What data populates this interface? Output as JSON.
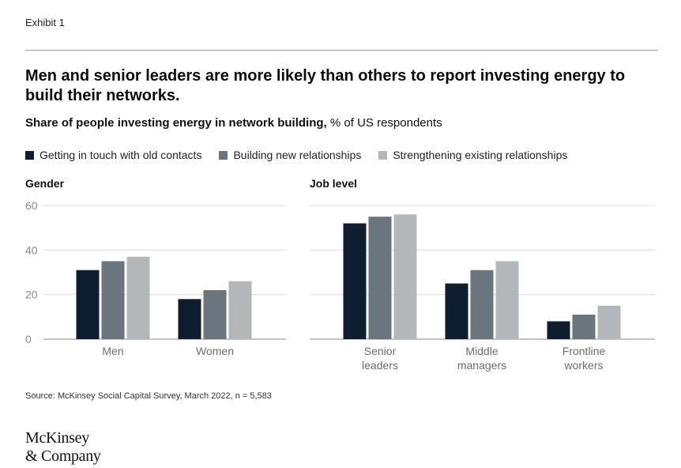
{
  "exhibit_label": "Exhibit 1",
  "title": "Men and senior leaders are more likely than others to report investing energy to build their networks.",
  "subtitle_bold": "Share of people investing energy in network building,",
  "subtitle_rest": " % of US respondents",
  "colors": {
    "getting_in_touch": "#0e1e2e",
    "building_new": "#6b757d",
    "strengthening": "#b3b7ba",
    "gridline": "#dcdcdc",
    "axis": "#8a8a8a"
  },
  "chart_data": [
    {
      "type": "bar",
      "title": "Gender",
      "categories": [
        "Men",
        "Women"
      ],
      "series": [
        {
          "name": "Getting in touch with old contacts",
          "values": [
            31,
            18
          ]
        },
        {
          "name": "Building new relationships",
          "values": [
            35,
            22
          ]
        },
        {
          "name": "Strengthening existing relationships",
          "values": [
            37,
            26
          ]
        }
      ],
      "ylim": [
        0,
        60
      ],
      "yticks": [
        "60",
        "40",
        "20",
        "0"
      ],
      "grid": true,
      "legend": "top"
    },
    {
      "type": "bar",
      "title": "Job level",
      "categories": [
        "Senior leaders",
        "Middle managers",
        "Frontline workers"
      ],
      "category_lines": [
        [
          "Senior",
          "leaders"
        ],
        [
          "Middle",
          "managers"
        ],
        [
          "Frontline",
          "workers"
        ]
      ],
      "series": [
        {
          "name": "Getting in touch with old contacts",
          "values": [
            52,
            25,
            8
          ]
        },
        {
          "name": "Building new relationships",
          "values": [
            55,
            31,
            11
          ]
        },
        {
          "name": "Strengthening existing relationships",
          "values": [
            56,
            35,
            15
          ]
        }
      ],
      "ylim": [
        0,
        60
      ],
      "grid": true,
      "legend": "top"
    }
  ],
  "source": "Source: McKinsey Social Capital Survey, March 2022, n = 5,583",
  "logo": {
    "line1": "McKinsey",
    "line2": "& Company"
  }
}
